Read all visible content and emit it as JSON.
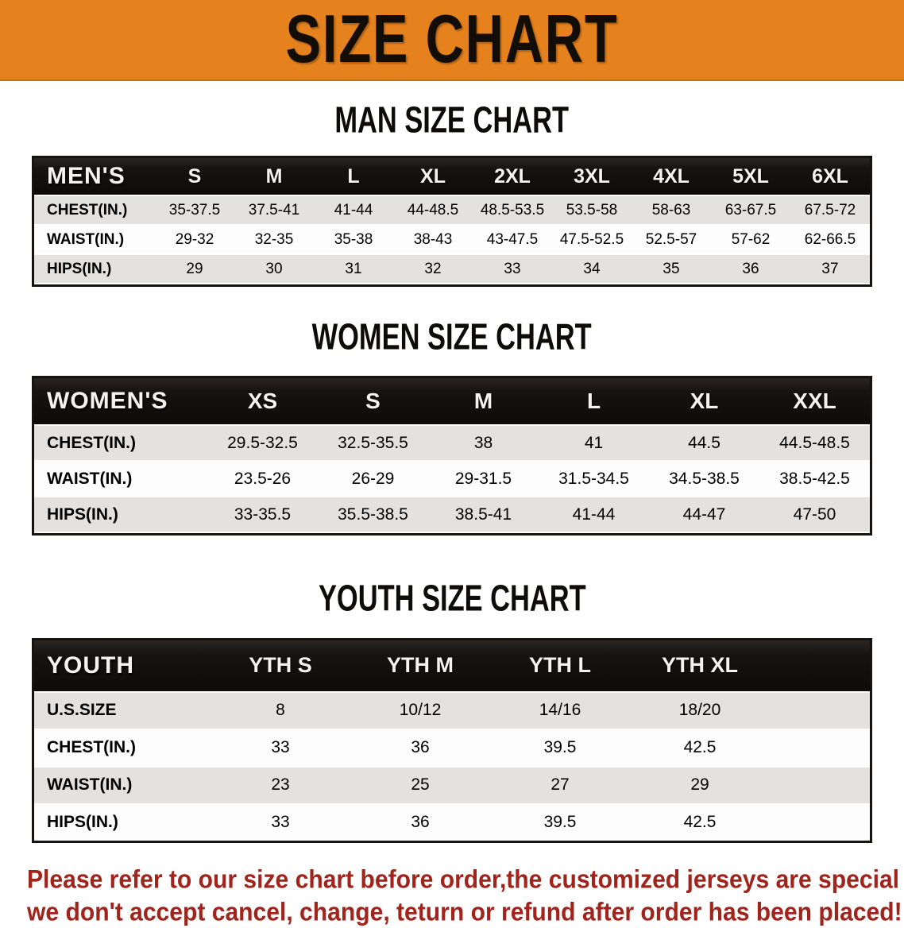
{
  "banner": {
    "title": "SIZE CHART"
  },
  "colors": {
    "banner_bg": "#e5821e",
    "header_bar": "#16120f",
    "row_alt": "#e3e2e0",
    "disclaimer": "#a0241b"
  },
  "sections": [
    {
      "heading": "MAN SIZE CHART",
      "table": {
        "label": "MEN'S",
        "columns": [
          "S",
          "M",
          "L",
          "XL",
          "2XL",
          "3XL",
          "4XL",
          "5XL",
          "6XL"
        ],
        "rows": [
          {
            "label": "CHEST(IN.)",
            "values": [
              "35-37.5",
              "37.5-41",
              "41-44",
              "44-48.5",
              "48.5-53.5",
              "53.5-58",
              "58-63",
              "63-67.5",
              "67.5-72"
            ]
          },
          {
            "label": "WAIST(IN.)",
            "values": [
              "29-32",
              "32-35",
              "35-38",
              "38-43",
              "43-47.5",
              "47.5-52.5",
              "52.5-57",
              "57-62",
              "62-66.5"
            ]
          },
          {
            "label": "HIPS(IN.)",
            "values": [
              "29",
              "30",
              "31",
              "32",
              "33",
              "34",
              "35",
              "36",
              "37"
            ]
          }
        ]
      }
    },
    {
      "heading": "WOMEN SIZE CHART",
      "table": {
        "label": "WOMEN'S",
        "columns": [
          "XS",
          "S",
          "M",
          "L",
          "XL",
          "XXL"
        ],
        "rows": [
          {
            "label": "CHEST(IN.)",
            "values": [
              "29.5-32.5",
              "32.5-35.5",
              "38",
              "41",
              "44.5",
              "44.5-48.5"
            ]
          },
          {
            "label": "WAIST(IN.)",
            "values": [
              "23.5-26",
              "26-29",
              "29-31.5",
              "31.5-34.5",
              "34.5-38.5",
              "38.5-42.5"
            ]
          },
          {
            "label": "HIPS(IN.)",
            "values": [
              "33-35.5",
              "35.5-38.5",
              "38.5-41",
              "41-44",
              "44-47",
              "47-50"
            ]
          }
        ]
      }
    },
    {
      "heading": "YOUTH SIZE CHART",
      "table": {
        "label": "YOUTH",
        "columns": [
          "YTH S",
          "YTH M",
          "YTH L",
          "YTH XL"
        ],
        "rows": [
          {
            "label": "U.S.SIZE",
            "values": [
              "8",
              "10/12",
              "14/16",
              "18/20"
            ]
          },
          {
            "label": "CHEST(IN.)",
            "values": [
              "33",
              "36",
              "39.5",
              "42.5"
            ]
          },
          {
            "label": "WAIST(IN.)",
            "values": [
              "23",
              "25",
              "27",
              "29"
            ]
          },
          {
            "label": "HIPS(IN.)",
            "values": [
              "33",
              "36",
              "39.5",
              "42.5"
            ]
          }
        ]
      }
    }
  ],
  "disclaimer": {
    "line1": "Please refer to our size chart before order,the customized jerseys are special products,",
    "line2": "we don't accept cancel, change, teturn or refund after order has been placed!"
  }
}
